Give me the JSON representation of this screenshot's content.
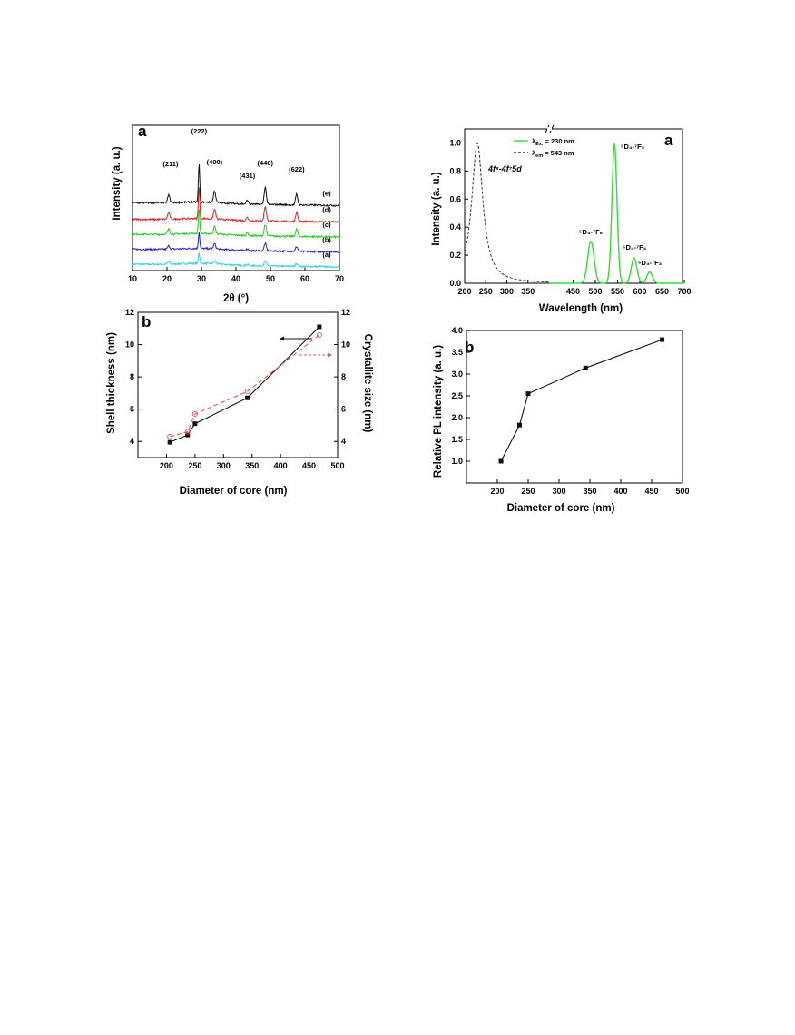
{
  "chart_data": [
    {
      "id": "xrd",
      "type": "line",
      "panel_label": "a",
      "xlabel": "2θ (°)",
      "ylabel": "Intensity (a. u.)",
      "xlim": [
        10,
        70
      ],
      "xticks": [
        "10",
        "20",
        "30",
        "40",
        "50",
        "60",
        "70"
      ],
      "peaks": [
        {
          "label": "(211)",
          "x": 20.5,
          "h": 0.2
        },
        {
          "label": "(222)",
          "x": 29.3,
          "h": 1.0
        },
        {
          "label": "(400)",
          "x": 33.8,
          "h": 0.3
        },
        {
          "label": "(431)",
          "x": 43.3,
          "h": 0.1
        },
        {
          "label": "(440)",
          "x": 48.5,
          "h": 0.45
        },
        {
          "label": "(622)",
          "x": 57.6,
          "h": 0.28
        }
      ],
      "series": [
        {
          "label": "(a)",
          "color": "#2fd4e0",
          "offset": 0.0,
          "scale": 0.45
        },
        {
          "label": "(b)",
          "color": "#2222cc",
          "offset": 1.0,
          "scale": 0.7
        },
        {
          "label": "(c)",
          "color": "#22cc22",
          "offset": 2.0,
          "scale": 1.05
        },
        {
          "label": "(d)",
          "color": "#e02020",
          "offset": 3.0,
          "scale": 1.35
        },
        {
          "label": "(e)",
          "color": "#111111",
          "offset": 4.1,
          "scale": 1.6
        }
      ]
    },
    {
      "id": "pl",
      "type": "line",
      "panel_label": "a",
      "xlabel": "Wavelength (nm)",
      "ylabel": "Intensity (a. u.)",
      "ylim": [
        0,
        1.1
      ],
      "yticks": [
        "0.0",
        "0.2",
        "0.4",
        "0.6",
        "0.8",
        "1.0"
      ],
      "xticks_left": [
        "200",
        "250",
        "300",
        "350"
      ],
      "xticks_right": [
        "450",
        "500",
        "550",
        "600",
        "650",
        "700"
      ],
      "legend": [
        {
          "label": "λ",
          "sub": "Ex.",
          "suffix": " = 230 nm",
          "style": "solid",
          "color": "#33dd33"
        },
        {
          "label": "λ",
          "sub": "em",
          "suffix": " = 543 nm",
          "style": "dashed",
          "color": "#333333"
        }
      ],
      "excitation": {
        "center": 230,
        "width": 16,
        "peak": 1.0
      },
      "emission": [
        {
          "center": 490,
          "width": 10,
          "peak": 0.3
        },
        {
          "center": 543,
          "width": 8,
          "peak": 0.99
        },
        {
          "center": 587,
          "width": 9,
          "peak": 0.18
        },
        {
          "center": 622,
          "width": 9,
          "peak": 0.08
        }
      ],
      "annotations": {
        "band": "4f⁸-4f⁷5d",
        "t1": "⁵D₄-⁷F₆",
        "t2": "⁵D₄-⁷F₅",
        "t3": "⁵D₄-⁷F₄",
        "t4": "⁵D₄-⁷F₃"
      }
    },
    {
      "id": "shell",
      "type": "line",
      "panel_label": "b",
      "xlabel": "Diameter of core (nm)",
      "ylabel": "Shell thickness (nm)",
      "y2label": "Crystallite size (nm)",
      "xlim": [
        150,
        500
      ],
      "ylim": [
        3,
        12
      ],
      "xticks": [
        "200",
        "250",
        "300",
        "350",
        "400",
        "450",
        "500"
      ],
      "yticks": [
        "4",
        "6",
        "8",
        "10",
        "12"
      ],
      "series": [
        {
          "name": "",
          "style": "solid",
          "color": "#111111",
          "x": [
            206,
            237,
            250,
            342,
            468
          ],
          "y": [
            3.95,
            4.4,
            5.1,
            6.7,
            11.1
          ]
        },
        {
          "name": "",
          "style": "dashed",
          "color": "#e05a5a",
          "x": [
            206,
            237,
            250,
            342,
            468
          ],
          "y": [
            4.3,
            4.6,
            5.7,
            7.1,
            10.6
          ]
        }
      ]
    },
    {
      "id": "relpl",
      "type": "line",
      "panel_label": "b",
      "xlabel": "Diameter of core (nm)",
      "ylabel": "Relative PL intensity (a. u.)",
      "xlim": [
        150,
        500
      ],
      "ylim": [
        0.5,
        4.0
      ],
      "xticks": [
        "200",
        "250",
        "300",
        "350",
        "400",
        "450",
        "500"
      ],
      "yticks": [
        "1.0",
        "1.5",
        "2.0",
        "2.5",
        "3.0",
        "3.5",
        "4.0"
      ],
      "series": [
        {
          "name": "",
          "style": "solid",
          "color": "#111111",
          "x": [
            206,
            236,
            250,
            343,
            467
          ],
          "y": [
            1.0,
            1.83,
            2.55,
            3.14,
            3.79
          ]
        }
      ]
    }
  ]
}
